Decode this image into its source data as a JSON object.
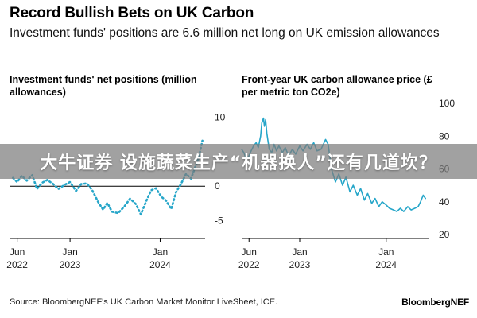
{
  "header": {
    "title": "Record Bullish Bets on UK Carbon",
    "subtitle": "Investment funds' positions are 6.6 million net long on UK emission allowances"
  },
  "colors": {
    "series": "#26a6c9",
    "axis": "#000000",
    "grid": "#dddddd"
  },
  "overlay": {
    "text": "大牛证券 设施蔬菜生产“机器换人”还有几道坎？"
  },
  "footer": {
    "source": "Source: BloombergNEF's UK Carbon Market Monitor LiveSheet, ICE.",
    "brand": "BloombergNEF"
  },
  "chart_data": [
    {
      "type": "line",
      "title": "Investment funds' net positions (million allowances)",
      "x_ticks": [
        {
          "date": "2022-06",
          "line1": "Jun",
          "line2": "2022"
        },
        {
          "date": "2023-01",
          "line1": "Jan",
          "line2": "2023"
        },
        {
          "date": "2024-01",
          "line1": "Jan",
          "line2": "2024"
        }
      ],
      "y_ticks": [
        10,
        0,
        -5
      ],
      "ylim": [
        -7,
        12
      ],
      "zero_line": true,
      "series": [
        {
          "color": "#26a6c9",
          "style": "dotted",
          "points": [
            [
              "2022-05-15",
              1.2
            ],
            [
              "2022-06-01",
              0.6
            ],
            [
              "2022-06-20",
              1.5
            ],
            [
              "2022-07-10",
              0.8
            ],
            [
              "2022-08-01",
              1.6
            ],
            [
              "2022-08-20",
              -0.4
            ],
            [
              "2022-09-10",
              0.5
            ],
            [
              "2022-10-01",
              0.9
            ],
            [
              "2022-10-25",
              0.3
            ],
            [
              "2022-11-15",
              -0.4
            ],
            [
              "2022-12-10",
              0.2
            ],
            [
              "2023-01-01",
              0.6
            ],
            [
              "2023-01-25",
              -0.7
            ],
            [
              "2023-02-15",
              0.3
            ],
            [
              "2023-03-10",
              0.4
            ],
            [
              "2023-04-01",
              -0.6
            ],
            [
              "2023-04-25",
              -2.3
            ],
            [
              "2023-05-15",
              -3.4
            ],
            [
              "2023-06-01",
              -2.4
            ],
            [
              "2023-06-20",
              -3.7
            ],
            [
              "2023-07-15",
              -3.9
            ],
            [
              "2023-08-10",
              -2.9
            ],
            [
              "2023-09-01",
              -1.8
            ],
            [
              "2023-09-25",
              -2.6
            ],
            [
              "2023-10-15",
              -4.1
            ],
            [
              "2023-11-05",
              -2.2
            ],
            [
              "2023-11-25",
              -0.6
            ],
            [
              "2023-12-15",
              -0.3
            ],
            [
              "2024-01-05",
              -1.5
            ],
            [
              "2024-01-25",
              -2.1
            ],
            [
              "2024-02-15",
              -3.3
            ],
            [
              "2024-03-05",
              -0.9
            ],
            [
              "2024-03-25",
              0.3
            ],
            [
              "2024-04-15",
              1.8
            ],
            [
              "2024-05-05",
              1.1
            ],
            [
              "2024-05-20",
              2.6
            ],
            [
              "2024-06-05",
              4.1
            ],
            [
              "2024-06-20",
              6.6
            ]
          ]
        }
      ]
    },
    {
      "type": "line",
      "title": "Front-year UK carbon allowance price (£ per metric ton CO2e)",
      "x_ticks": [
        {
          "date": "2022-06",
          "line1": "Jun",
          "line2": "2022"
        },
        {
          "date": "2023-01",
          "line1": "Jan",
          "line2": "2023"
        },
        {
          "date": "2024-01",
          "line1": "Jan",
          "line2": "2024"
        }
      ],
      "y_ticks": [
        100,
        80,
        60,
        40,
        20
      ],
      "ylim": [
        20,
        100
      ],
      "series": [
        {
          "color": "#26a6c9",
          "style": "solid",
          "points": [
            [
              "2022-05-01",
              72
            ],
            [
              "2022-05-10",
              70
            ],
            [
              "2022-05-20",
              66
            ],
            [
              "2022-06-01",
              68
            ],
            [
              "2022-06-10",
              71
            ],
            [
              "2022-06-20",
              74
            ],
            [
              "2022-07-01",
              76
            ],
            [
              "2022-07-10",
              73
            ],
            [
              "2022-07-20",
              80
            ],
            [
              "2022-07-25",
              88
            ],
            [
              "2022-08-01",
              91
            ],
            [
              "2022-08-05",
              86
            ],
            [
              "2022-08-10",
              90
            ],
            [
              "2022-08-15",
              82
            ],
            [
              "2022-08-25",
              72
            ],
            [
              "2022-09-05",
              70
            ],
            [
              "2022-09-15",
              75
            ],
            [
              "2022-09-25",
              71
            ],
            [
              "2022-10-05",
              74
            ],
            [
              "2022-10-20",
              70
            ],
            [
              "2022-11-01",
              73
            ],
            [
              "2022-11-15",
              68
            ],
            [
              "2022-12-01",
              72
            ],
            [
              "2022-12-15",
              69
            ],
            [
              "2023-01-01",
              74
            ],
            [
              "2023-01-15",
              71
            ],
            [
              "2023-02-01",
              75
            ],
            [
              "2023-02-15",
              72
            ],
            [
              "2023-03-01",
              76
            ],
            [
              "2023-03-15",
              71
            ],
            [
              "2023-04-01",
              72
            ],
            [
              "2023-04-20",
              78
            ],
            [
              "2023-05-01",
              75
            ],
            [
              "2023-05-15",
              60
            ],
            [
              "2023-06-01",
              52
            ],
            [
              "2023-06-15",
              57
            ],
            [
              "2023-07-01",
              50
            ],
            [
              "2023-07-15",
              55
            ],
            [
              "2023-08-01",
              46
            ],
            [
              "2023-08-15",
              50
            ],
            [
              "2023-09-01",
              44
            ],
            [
              "2023-09-15",
              48
            ],
            [
              "2023-10-01",
              41
            ],
            [
              "2023-10-15",
              45
            ],
            [
              "2023-11-01",
              39
            ],
            [
              "2023-11-15",
              42
            ],
            [
              "2023-12-01",
              37
            ],
            [
              "2023-12-15",
              40
            ],
            [
              "2024-01-01",
              38
            ],
            [
              "2024-01-15",
              36
            ],
            [
              "2024-02-01",
              35
            ],
            [
              "2024-02-15",
              34
            ],
            [
              "2024-03-01",
              36
            ],
            [
              "2024-03-15",
              34
            ],
            [
              "2024-04-01",
              37
            ],
            [
              "2024-04-15",
              35
            ],
            [
              "2024-05-01",
              36
            ],
            [
              "2024-05-15",
              37
            ],
            [
              "2024-05-25",
              40
            ],
            [
              "2024-06-05",
              44
            ],
            [
              "2024-06-15",
              42
            ]
          ]
        }
      ]
    }
  ]
}
